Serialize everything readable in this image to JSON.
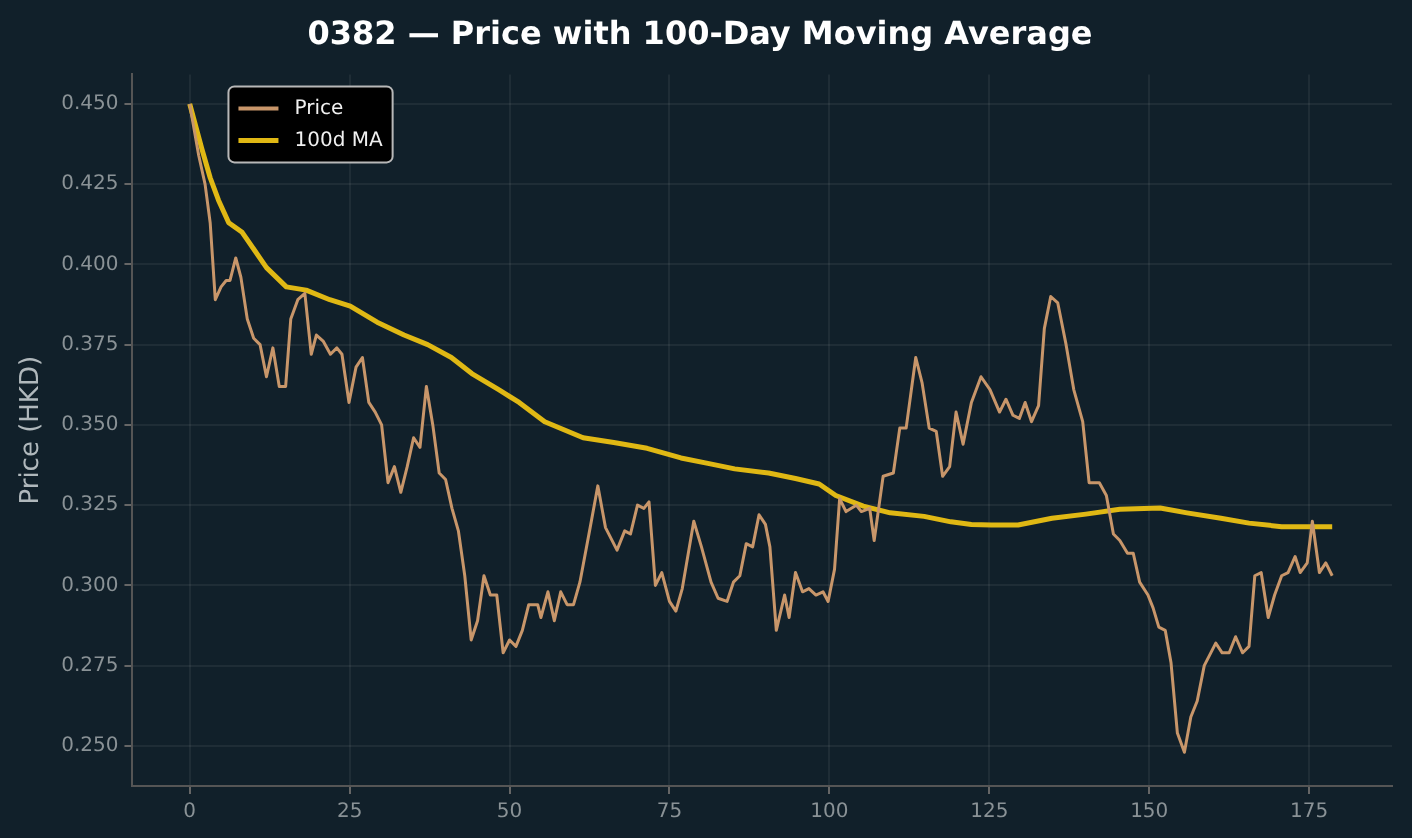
{
  "chart_data": {
    "type": "line",
    "title": "0382 — Price with 100-Day Moving Average",
    "ylabel": "Price (HKD)",
    "xlim": [
      -8.95,
      187.95
    ],
    "xticks": [
      0,
      25,
      50,
      75,
      100,
      125,
      150,
      175
    ],
    "ylim": [
      0.2375,
      0.4592
    ],
    "yticks": [
      {
        "value": 0.25,
        "label": "0.250"
      },
      {
        "value": 0.275,
        "label": "0.275"
      },
      {
        "value": 0.3,
        "label": "0.300"
      },
      {
        "value": 0.325,
        "label": "0.325"
      },
      {
        "value": 0.35,
        "label": "0.350"
      },
      {
        "value": 0.375,
        "label": "0.375"
      },
      {
        "value": 0.4,
        "label": "0.400"
      },
      {
        "value": 0.425,
        "label": "0.425"
      },
      {
        "value": 0.45,
        "label": "0.450"
      }
    ],
    "grid": true,
    "legend": "top left",
    "marker": "none",
    "line_style": "solid",
    "series": [
      {
        "name": "Price",
        "color": "#c8966a",
        "x": [
          0,
          1.4,
          2.4,
          3.2,
          4,
          4.9,
          5.7,
          6.3,
          7.2,
          8,
          9,
          10,
          11,
          12,
          13,
          14,
          15,
          15.8,
          16.9,
          18,
          19,
          19.8,
          20.9,
          22,
          23,
          23.8,
          24.9,
          26,
          27,
          28,
          29,
          30,
          31,
          32,
          33,
          34,
          35,
          36,
          37,
          38,
          39,
          40,
          41,
          42,
          43,
          44,
          45,
          46,
          47,
          48,
          49,
          50,
          51,
          52,
          53,
          54.4,
          54.9,
          56,
          57,
          58,
          59,
          60,
          61,
          62.6,
          63.8,
          65,
          66.8,
          68,
          68.9,
          70,
          71,
          71.8,
          72.8,
          73.8,
          75,
          76,
          77,
          78.8,
          80,
          81.5,
          82.6,
          84,
          85,
          86,
          87,
          88,
          89,
          90,
          90.7,
          91.7,
          93,
          93.7,
          94.7,
          95.8,
          96.8,
          97.9,
          99,
          99.8,
          100.8,
          101.6,
          102.6,
          104.2,
          105,
          106.3,
          107,
          108.4,
          110,
          111,
          112,
          113.5,
          114.5,
          115.6,
          116.7,
          117.7,
          118.8,
          119.8,
          120.9,
          122.2,
          123.7,
          125.1,
          126.6,
          127.6,
          128.7,
          129.7,
          130.6,
          131.6,
          132.7,
          133.6,
          134.6,
          135.7,
          137,
          138.2,
          139.6,
          140.6,
          142.2,
          143.3,
          144.4,
          145.4,
          146.6,
          147.5,
          148.5,
          149.8,
          150.6,
          151.5,
          152.5,
          153.4,
          154.4,
          155.5,
          156.5,
          157.5,
          158.6,
          160.4,
          161.4,
          162.5,
          163.5,
          164.6,
          165.6,
          166.5,
          167.5,
          168.6,
          169.6,
          170.7,
          171.7,
          172.8,
          173.6,
          174.7,
          175.5,
          176.6,
          177.6,
          178.6
        ],
        "values": [
          0.45,
          0.434,
          0.425,
          0.413,
          0.389,
          0.393,
          0.395,
          0.395,
          0.402,
          0.396,
          0.383,
          0.377,
          0.375,
          0.365,
          0.374,
          0.362,
          0.362,
          0.383,
          0.389,
          0.391,
          0.372,
          0.378,
          0.376,
          0.372,
          0.374,
          0.372,
          0.357,
          0.368,
          0.371,
          0.357,
          0.354,
          0.35,
          0.332,
          0.337,
          0.329,
          0.337,
          0.346,
          0.343,
          0.362,
          0.35,
          0.335,
          0.333,
          0.324,
          0.317,
          0.303,
          0.283,
          0.289,
          0.303,
          0.297,
          0.297,
          0.279,
          0.283,
          0.281,
          0.286,
          0.294,
          0.294,
          0.29,
          0.298,
          0.289,
          0.298,
          0.294,
          0.294,
          0.301,
          0.318,
          0.331,
          0.318,
          0.311,
          0.317,
          0.316,
          0.325,
          0.324,
          0.326,
          0.3,
          0.304,
          0.295,
          0.292,
          0.299,
          0.32,
          0.312,
          0.301,
          0.296,
          0.295,
          0.301,
          0.303,
          0.313,
          0.312,
          0.322,
          0.319,
          0.312,
          0.286,
          0.297,
          0.29,
          0.304,
          0.298,
          0.299,
          0.297,
          0.298,
          0.295,
          0.305,
          0.327,
          0.323,
          0.325,
          0.323,
          0.324,
          0.314,
          0.334,
          0.335,
          0.349,
          0.349,
          0.371,
          0.363,
          0.349,
          0.348,
          0.334,
          0.337,
          0.354,
          0.344,
          0.357,
          0.365,
          0.361,
          0.354,
          0.358,
          0.353,
          0.352,
          0.357,
          0.351,
          0.356,
          0.38,
          0.39,
          0.388,
          0.375,
          0.361,
          0.351,
          0.332,
          0.332,
          0.328,
          0.316,
          0.314,
          0.31,
          0.31,
          0.301,
          0.297,
          0.293,
          0.287,
          0.286,
          0.276,
          0.254,
          0.248,
          0.259,
          0.264,
          0.275,
          0.282,
          0.279,
          0.279,
          0.284,
          0.279,
          0.281,
          0.303,
          0.304,
          0.29,
          0.297,
          0.303,
          0.304,
          0.309,
          0.304,
          0.307,
          0.32,
          0.304,
          0.307,
          0.303
        ]
      },
      {
        "name": "100d MA",
        "color": "#e0b814",
        "x": [
          0,
          1.9,
          3.2,
          4.5,
          6.1,
          8.2,
          12,
          15.1,
          18.2,
          21.9,
          25.1,
          29.3,
          33.5,
          37.2,
          40.9,
          44.1,
          48.3,
          51.5,
          55.5,
          61.5,
          66.3,
          71.5,
          76.8,
          81,
          85.2,
          90.5,
          94.7,
          98.4,
          101,
          105.3,
          109.5,
          114.8,
          119,
          122.2,
          125.3,
          129.5,
          134.8,
          140.1,
          145.4,
          151.7,
          155.9,
          161.2,
          165.6,
          170.7,
          174.9,
          178.6
        ],
        "values": [
          0.45,
          0.436,
          0.427,
          0.42,
          0.413,
          0.41,
          0.399,
          0.393,
          0.392,
          0.389,
          0.387,
          0.382,
          0.378,
          0.375,
          0.371,
          0.366,
          0.361,
          0.357,
          0.351,
          0.346,
          0.3445,
          0.3427,
          0.3397,
          0.338,
          0.3363,
          0.335,
          0.3333,
          0.3316,
          0.328,
          0.3247,
          0.3226,
          0.3215,
          0.3198,
          0.319,
          0.3188,
          0.3188,
          0.3209,
          0.3222,
          0.3237,
          0.3241,
          0.3226,
          0.3209,
          0.3194,
          0.3183,
          0.3183,
          0.3183
        ]
      }
    ]
  }
}
